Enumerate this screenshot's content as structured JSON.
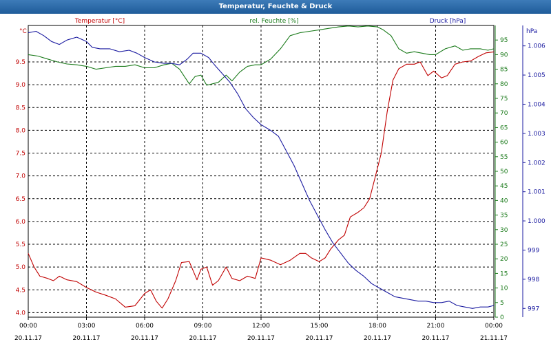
{
  "window": {
    "title": "Temperatur, Feuchte & Druck"
  },
  "chart_data": {
    "type": "line",
    "title": "Temperatur, Feuchte & Druck",
    "grid": true,
    "legend_placement": "top",
    "colors": {
      "temperature": "#c00000",
      "humidity": "#1a7a1a",
      "pressure": "#1a1aa0"
    },
    "x_axis": {
      "ticks": [
        {
          "time": "00:00",
          "date": "20.11.17"
        },
        {
          "time": "03:00",
          "date": "20.11.17"
        },
        {
          "time": "06:00",
          "date": "20.11.17"
        },
        {
          "time": "09:00",
          "date": "20.11.17"
        },
        {
          "time": "12:00",
          "date": "20.11.17"
        },
        {
          "time": "15:00",
          "date": "20.11.17"
        },
        {
          "time": "18:00",
          "date": "20.11.17"
        },
        {
          "time": "21:00",
          "date": "20.11.17"
        },
        {
          "time": "00:00",
          "date": "21.11.17"
        }
      ],
      "range_hours": [
        0,
        24
      ]
    },
    "axes": {
      "temperature": {
        "label": "Temperatur [°C]",
        "unit": "°C",
        "ylim": [
          3.9,
          10.3
        ],
        "ticks": [
          "4.0",
          "4.5",
          "5.0",
          "5.5",
          "6.0",
          "6.5",
          "7.0",
          "7.5",
          "8.0",
          "8.5",
          "9.0",
          "9.5"
        ]
      },
      "humidity": {
        "label": "rel. Feuchte [%]",
        "unit": "%",
        "ylim": [
          0,
          100
        ],
        "ticks": [
          "0",
          "5",
          "10",
          "15",
          "20",
          "25",
          "30",
          "35",
          "40",
          "45",
          "50",
          "55",
          "60",
          "65",
          "70",
          "75",
          "80",
          "85",
          "90",
          "95"
        ]
      },
      "pressure": {
        "label": "Druck [hPa]",
        "unit": "hPa",
        "ylim": [
          996.7,
          1006.7
        ],
        "ticks": [
          "997",
          "998",
          "999",
          "1.000",
          "1.001",
          "1.002",
          "1.003",
          "1.004",
          "1.005",
          "1.006"
        ]
      }
    },
    "series": [
      {
        "name": "Temperatur [°C]",
        "axis": "temperature",
        "points": [
          [
            0.0,
            5.3
          ],
          [
            0.3,
            5.0
          ],
          [
            0.6,
            4.8
          ],
          [
            1.0,
            4.75
          ],
          [
            1.3,
            4.7
          ],
          [
            1.6,
            4.8
          ],
          [
            2.0,
            4.72
          ],
          [
            2.5,
            4.68
          ],
          [
            3.0,
            4.55
          ],
          [
            3.5,
            4.45
          ],
          [
            4.0,
            4.38
          ],
          [
            4.5,
            4.3
          ],
          [
            5.0,
            4.12
          ],
          [
            5.5,
            4.15
          ],
          [
            6.0,
            4.42
          ],
          [
            6.3,
            4.5
          ],
          [
            6.6,
            4.25
          ],
          [
            6.9,
            4.1
          ],
          [
            7.2,
            4.3
          ],
          [
            7.6,
            4.7
          ],
          [
            7.9,
            5.1
          ],
          [
            8.3,
            5.12
          ],
          [
            8.7,
            4.72
          ],
          [
            8.9,
            4.95
          ],
          [
            9.2,
            5.0
          ],
          [
            9.5,
            4.6
          ],
          [
            9.8,
            4.7
          ],
          [
            10.2,
            5.0
          ],
          [
            10.5,
            4.75
          ],
          [
            10.9,
            4.7
          ],
          [
            11.3,
            4.8
          ],
          [
            11.7,
            4.75
          ],
          [
            12.0,
            5.2
          ],
          [
            12.5,
            5.15
          ],
          [
            13.0,
            5.05
          ],
          [
            13.5,
            5.15
          ],
          [
            14.0,
            5.3
          ],
          [
            14.3,
            5.3
          ],
          [
            14.6,
            5.2
          ],
          [
            15.0,
            5.12
          ],
          [
            15.3,
            5.2
          ],
          [
            15.6,
            5.4
          ],
          [
            16.0,
            5.6
          ],
          [
            16.3,
            5.7
          ],
          [
            16.6,
            6.1
          ],
          [
            17.0,
            6.2
          ],
          [
            17.3,
            6.3
          ],
          [
            17.6,
            6.5
          ],
          [
            17.9,
            7.0
          ],
          [
            18.2,
            7.5
          ],
          [
            18.5,
            8.4
          ],
          [
            18.8,
            9.1
          ],
          [
            19.1,
            9.35
          ],
          [
            19.5,
            9.45
          ],
          [
            19.9,
            9.45
          ],
          [
            20.2,
            9.5
          ],
          [
            20.6,
            9.2
          ],
          [
            20.9,
            9.3
          ],
          [
            21.3,
            9.15
          ],
          [
            21.6,
            9.2
          ],
          [
            22.0,
            9.45
          ],
          [
            22.4,
            9.5
          ],
          [
            22.8,
            9.52
          ],
          [
            23.2,
            9.62
          ],
          [
            23.6,
            9.7
          ],
          [
            24.0,
            9.72
          ]
        ]
      },
      {
        "name": "rel. Feuchte [%]",
        "axis": "humidity",
        "points": [
          [
            0.0,
            90.0
          ],
          [
            0.5,
            89.5
          ],
          [
            1.0,
            88.5
          ],
          [
            1.5,
            87.5
          ],
          [
            2.0,
            86.8
          ],
          [
            2.5,
            86.5
          ],
          [
            3.0,
            86.0
          ],
          [
            3.5,
            85.0
          ],
          [
            4.0,
            85.5
          ],
          [
            4.5,
            86.0
          ],
          [
            5.0,
            86.0
          ],
          [
            5.5,
            86.5
          ],
          [
            6.0,
            85.5
          ],
          [
            6.5,
            85.5
          ],
          [
            7.0,
            86.5
          ],
          [
            7.4,
            87.0
          ],
          [
            7.8,
            85.0
          ],
          [
            8.1,
            82.0
          ],
          [
            8.3,
            80.0
          ],
          [
            8.6,
            82.5
          ],
          [
            8.9,
            83.0
          ],
          [
            9.2,
            79.5
          ],
          [
            9.5,
            80.0
          ],
          [
            9.8,
            80.5
          ],
          [
            10.2,
            83.0
          ],
          [
            10.5,
            81.0
          ],
          [
            10.9,
            84.0
          ],
          [
            11.3,
            86.0
          ],
          [
            11.7,
            86.5
          ],
          [
            12.0,
            86.5
          ],
          [
            12.5,
            88.5
          ],
          [
            13.0,
            92.0
          ],
          [
            13.5,
            96.5
          ],
          [
            14.0,
            97.5
          ],
          [
            14.5,
            98.0
          ],
          [
            15.0,
            98.5
          ],
          [
            15.5,
            99.0
          ],
          [
            16.0,
            99.5
          ],
          [
            16.5,
            99.8
          ],
          [
            17.0,
            99.5
          ],
          [
            17.5,
            99.8
          ],
          [
            18.0,
            99.5
          ],
          [
            18.3,
            98.5
          ],
          [
            18.7,
            96.5
          ],
          [
            19.1,
            92.0
          ],
          [
            19.5,
            90.5
          ],
          [
            19.9,
            91.0
          ],
          [
            20.3,
            90.5
          ],
          [
            20.7,
            90.0
          ],
          [
            21.0,
            90.0
          ],
          [
            21.5,
            92.0
          ],
          [
            22.0,
            93.0
          ],
          [
            22.4,
            91.5
          ],
          [
            22.8,
            92.0
          ],
          [
            23.3,
            92.0
          ],
          [
            23.7,
            91.5
          ],
          [
            24.0,
            92.0
          ]
        ]
      },
      {
        "name": "Druck [hPa]",
        "axis": "pressure",
        "points": [
          [
            0.0,
            1006.45
          ],
          [
            0.4,
            1006.5
          ],
          [
            0.8,
            1006.35
          ],
          [
            1.2,
            1006.15
          ],
          [
            1.6,
            1006.05
          ],
          [
            2.0,
            1006.2
          ],
          [
            2.5,
            1006.3
          ],
          [
            3.0,
            1006.15
          ],
          [
            3.3,
            1005.95
          ],
          [
            3.7,
            1005.9
          ],
          [
            4.2,
            1005.9
          ],
          [
            4.7,
            1005.8
          ],
          [
            5.2,
            1005.85
          ],
          [
            5.6,
            1005.75
          ],
          [
            6.0,
            1005.6
          ],
          [
            6.5,
            1005.45
          ],
          [
            7.0,
            1005.4
          ],
          [
            7.4,
            1005.4
          ],
          [
            7.8,
            1005.35
          ],
          [
            8.2,
            1005.55
          ],
          [
            8.5,
            1005.75
          ],
          [
            8.9,
            1005.75
          ],
          [
            9.3,
            1005.6
          ],
          [
            9.6,
            1005.35
          ],
          [
            10.0,
            1005.05
          ],
          [
            10.4,
            1004.75
          ],
          [
            10.8,
            1004.35
          ],
          [
            11.2,
            1003.85
          ],
          [
            11.6,
            1003.55
          ],
          [
            12.0,
            1003.3
          ],
          [
            12.5,
            1003.1
          ],
          [
            12.9,
            1002.9
          ],
          [
            13.3,
            1002.4
          ],
          [
            13.7,
            1001.9
          ],
          [
            14.1,
            1001.3
          ],
          [
            14.5,
            1000.7
          ],
          [
            14.9,
            1000.2
          ],
          [
            15.3,
            999.7
          ],
          [
            15.7,
            999.25
          ],
          [
            16.1,
            998.9
          ],
          [
            16.5,
            998.55
          ],
          [
            16.9,
            998.3
          ],
          [
            17.3,
            998.1
          ],
          [
            17.7,
            997.85
          ],
          [
            18.1,
            997.7
          ],
          [
            18.5,
            997.55
          ],
          [
            18.9,
            997.4
          ],
          [
            19.3,
            997.35
          ],
          [
            19.7,
            997.3
          ],
          [
            20.1,
            997.25
          ],
          [
            20.5,
            997.25
          ],
          [
            20.9,
            997.2
          ],
          [
            21.3,
            997.2
          ],
          [
            21.7,
            997.25
          ],
          [
            22.1,
            997.1
          ],
          [
            22.5,
            997.05
          ],
          [
            22.9,
            997.0
          ],
          [
            23.3,
            997.05
          ],
          [
            23.7,
            997.05
          ],
          [
            24.0,
            997.1
          ]
        ]
      }
    ]
  }
}
